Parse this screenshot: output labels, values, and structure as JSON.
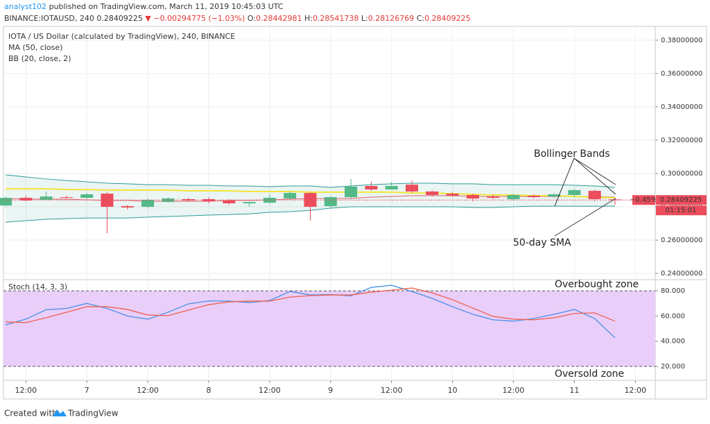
{
  "header": {
    "author": "analyst102",
    "published": "published on TradingView.com, March 11, 2019 10:45:03 UTC",
    "symbol": "BINANCE:IOTAUSD, 240",
    "last": "0.28409225",
    "change": "▼ −0.00294775 (−1.03%)",
    "ohlc": [
      {
        "label": "O:",
        "value": "0.28442981"
      },
      {
        "label": "H:",
        "value": "0.28541738"
      },
      {
        "label": "L:",
        "value": "0.28126769"
      },
      {
        "label": "C:",
        "value": "0.28409225"
      }
    ]
  },
  "chart_data": [
    {
      "type": "candlestick",
      "title": "IOTA / US Dollar (calculated by TradingView), 240, BINANCE",
      "categories": [
        null,
        "12:00",
        null,
        null,
        "7",
        null,
        null,
        "12:00",
        null,
        null,
        "8",
        null,
        null,
        "12:00",
        null,
        null,
        "9",
        null,
        null,
        "12:00",
        null,
        null,
        "10",
        null,
        null,
        "12:00",
        null,
        null,
        "11",
        null,
        null,
        "12:00"
      ],
      "open": [
        0.2808,
        0.2854,
        0.2842,
        0.2858,
        0.2854,
        0.2879,
        0.2804,
        0.28,
        0.2829,
        0.2846,
        0.2846,
        0.2838,
        0.2821,
        0.2825,
        0.285,
        0.2883,
        0.2804,
        0.2858,
        0.2925,
        0.2904,
        0.2933,
        0.2892,
        0.2879,
        0.2871,
        0.2862,
        0.2846,
        0.2867,
        0.2862,
        0.2871,
        0.2896,
        0.28442981,
        null
      ],
      "high": [
        0.2862,
        0.2867,
        0.2892,
        0.2867,
        0.2883,
        0.2888,
        0.2812,
        0.285,
        0.2858,
        0.2854,
        0.2858,
        0.2846,
        0.2829,
        0.2875,
        0.2892,
        0.2888,
        0.2867,
        0.2967,
        0.295,
        0.295,
        0.2958,
        0.29,
        0.2888,
        0.2879,
        0.2875,
        0.2879,
        0.2875,
        0.2883,
        0.2908,
        0.2904,
        0.28541738,
        null
      ],
      "low": [
        0.28,
        0.2833,
        0.2838,
        0.2846,
        0.2846,
        0.2642,
        0.2783,
        0.2792,
        0.2825,
        0.2829,
        0.2821,
        0.2812,
        0.28,
        0.2817,
        0.2842,
        0.2717,
        0.2796,
        0.285,
        0.2896,
        0.2904,
        0.2883,
        0.2862,
        0.2858,
        0.2833,
        0.2846,
        0.2838,
        0.285,
        0.2854,
        0.2858,
        0.2833,
        0.28126769,
        null
      ],
      "close": [
        0.2854,
        0.2838,
        0.2862,
        0.2854,
        0.2875,
        0.28,
        0.2796,
        0.2842,
        0.285,
        0.2838,
        0.2833,
        0.2821,
        0.2829,
        0.2854,
        0.2883,
        0.28,
        0.2858,
        0.2921,
        0.2904,
        0.2925,
        0.2892,
        0.2871,
        0.2867,
        0.285,
        0.2854,
        0.2871,
        0.2858,
        0.2875,
        0.29,
        0.2846,
        0.28409225,
        null
      ],
      "up_color": "#53b987",
      "down_color": "#eb4d5c",
      "series": [
        {
          "name": "MA (50, close)",
          "color": "#f2e63a",
          "values": [
            0.2908,
            0.2908,
            0.2908,
            0.2904,
            0.2904,
            0.29,
            0.29,
            0.29,
            0.29,
            0.2896,
            0.2896,
            0.2896,
            0.2892,
            0.2892,
            0.2892,
            0.2888,
            0.2888,
            0.2888,
            0.2888,
            0.2888,
            0.2883,
            0.2883,
            0.2879,
            0.2875,
            0.2871,
            0.2871,
            0.2867,
            0.2867,
            0.2862,
            0.2858,
            0.2854,
            null
          ]
        },
        {
          "name": "BB (20, close, 2)",
          "color": "#2f9c95",
          "basis_color": "#e0606a",
          "upper": [
            0.2992,
            0.2979,
            0.2967,
            0.2958,
            0.295,
            0.2942,
            0.2938,
            0.2933,
            0.2933,
            0.2929,
            0.2929,
            0.2925,
            0.2925,
            0.2921,
            0.2925,
            0.2925,
            0.2917,
            0.2925,
            0.2933,
            0.2938,
            0.2942,
            0.2942,
            0.2938,
            0.2938,
            0.2933,
            0.2933,
            0.2933,
            0.2933,
            0.2929,
            0.2925,
            0.2917,
            null
          ],
          "basis": [
            0.285,
            0.2846,
            0.2846,
            0.2846,
            0.2842,
            0.2838,
            0.2838,
            0.2833,
            0.2833,
            0.2833,
            0.2833,
            0.2838,
            0.2838,
            0.2842,
            0.2846,
            0.285,
            0.285,
            0.285,
            0.2858,
            0.2862,
            0.2867,
            0.2867,
            0.2867,
            0.2862,
            0.2862,
            0.2862,
            0.2862,
            0.2862,
            0.2862,
            0.2862,
            0.2858,
            null
          ],
          "lower": [
            0.2708,
            0.2717,
            0.2725,
            0.2729,
            0.2733,
            0.2733,
            0.2733,
            0.2738,
            0.2742,
            0.2746,
            0.275,
            0.2754,
            0.2758,
            0.2767,
            0.2771,
            0.2779,
            0.2792,
            0.28,
            0.28,
            0.28,
            0.28,
            0.28,
            0.28,
            0.2796,
            0.2796,
            0.28,
            0.2804,
            0.2804,
            0.2804,
            0.2804,
            0.2804,
            null
          ]
        }
      ],
      "ylim": [
        0.2367,
        0.3883
      ],
      "yticks": [
        {
          "value": 0.24,
          "label": "0.24000000"
        },
        {
          "value": 0.26,
          "label": "0.26000000"
        },
        {
          "value": 0.28,
          "label": "0.28000000"
        },
        {
          "value": 0.3,
          "label": "0.30000000"
        },
        {
          "value": 0.32,
          "label": "0.32000000"
        },
        {
          "value": 0.34,
          "label": "0.34000000"
        },
        {
          "value": 0.36,
          "label": "0.36000000"
        },
        {
          "value": 0.38,
          "label": "0.38000000"
        }
      ],
      "grid": true,
      "change_tag": "−0.45%",
      "price_tag": "0.28409225",
      "countdown": "01:15:01",
      "annotations": [
        "Bollinger Bands",
        "50-day SMA"
      ]
    },
    {
      "type": "line",
      "title": "Stoch (14, 3, 3)",
      "series": [
        {
          "color": "#4a90e2",
          "values": [
            53,
            57.5,
            65,
            66,
            70,
            66,
            60,
            57.5,
            63,
            69.6,
            72,
            71.8,
            70.7,
            72.3,
            79.5,
            76.7,
            77,
            76,
            82.7,
            84.4,
            79.5,
            74,
            67.4,
            61.4,
            57,
            55.9,
            58,
            61.4,
            65.2,
            58,
            42.7,
            null
          ]
        },
        {
          "color": "#f0604d",
          "values": [
            55.3,
            54.8,
            58.6,
            63,
            67.4,
            67.4,
            65.2,
            60.8,
            60.3,
            64.7,
            69,
            71.2,
            71.8,
            71.8,
            75,
            76.2,
            76.7,
            76.7,
            78.9,
            80.5,
            82.2,
            78.4,
            72.9,
            66.3,
            59.7,
            57.5,
            57,
            58.6,
            62,
            62.5,
            55.9,
            null
          ]
        }
      ],
      "bands": [
        20,
        80
      ],
      "band_color": "#e9cefa",
      "ylim": [
        9,
        88.3
      ],
      "yticks": [
        {
          "value": 20,
          "label": "20.000"
        },
        {
          "value": 40,
          "label": "40.000"
        },
        {
          "value": 60,
          "label": "60.000"
        },
        {
          "value": 80,
          "label": "80.000"
        }
      ],
      "annotations": [
        "Overbought zone",
        "Oversold zone"
      ]
    }
  ],
  "footer": {
    "created": "Created with",
    "brand": "TradingView"
  }
}
